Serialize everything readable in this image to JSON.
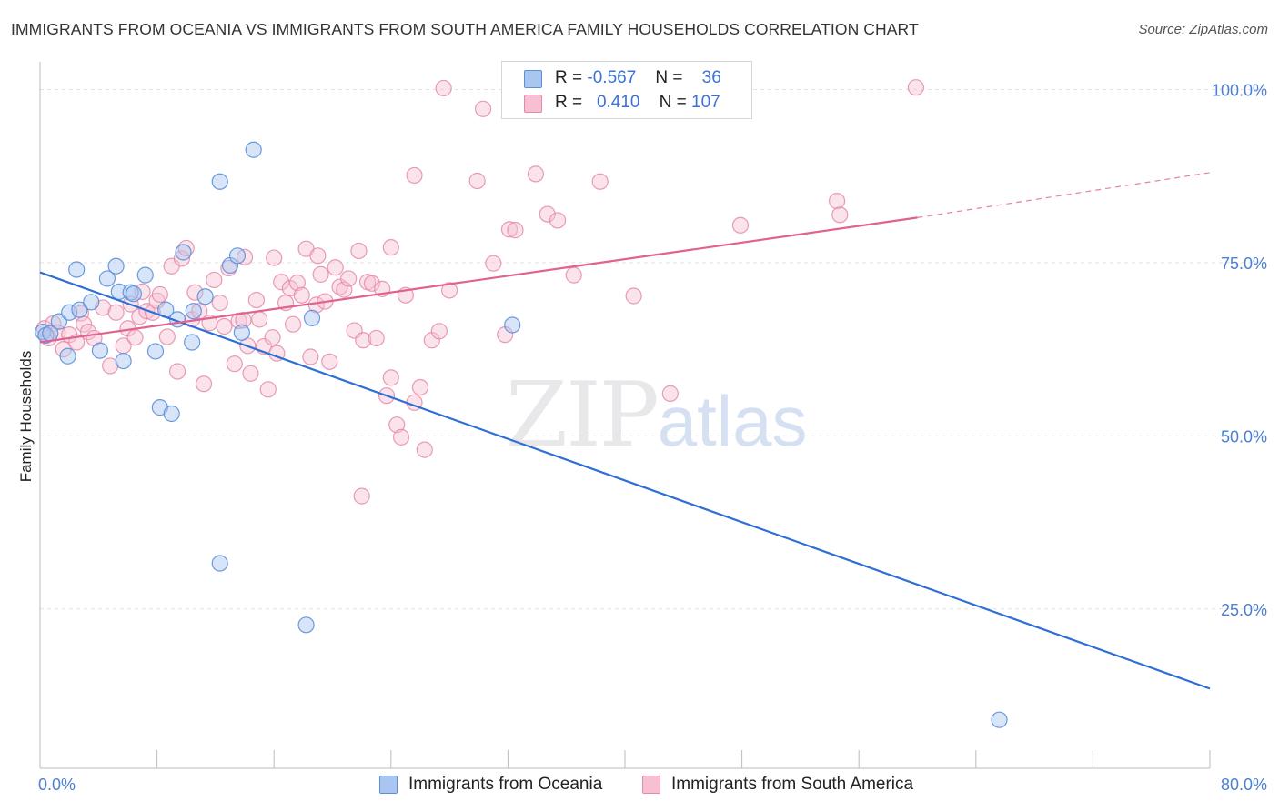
{
  "title": "IMMIGRANTS FROM OCEANIA VS IMMIGRANTS FROM SOUTH AMERICA FAMILY HOUSEHOLDS CORRELATION CHART",
  "source": "Source: ZipAtlas.com",
  "watermark": {
    "zip": "ZIP",
    "atlas": "atlas"
  },
  "colors": {
    "oceania_fill": "#a9c6f0",
    "oceania_stroke": "#5b8fdc",
    "oceania_line": "#2e6fd6",
    "sa_fill": "#f7c0d2",
    "sa_stroke": "#e589a8",
    "sa_line": "#e0628e",
    "tick_text": "#4a7fd4",
    "grid": "#e2e2e2"
  },
  "legend": {
    "rows": [
      {
        "r_label": "R =",
        "r_value": "-0.567",
        "n_label": "N =",
        "n_value": "36"
      },
      {
        "r_label": "R =",
        "r_value": "0.410",
        "n_label": "N =",
        "n_value": "107"
      }
    ]
  },
  "chart_data": {
    "type": "scatter",
    "title": "IMMIGRANTS FROM OCEANIA VS IMMIGRANTS FROM SOUTH AMERICA FAMILY HOUSEHOLDS CORRELATION CHART",
    "xlabel": "",
    "ylabel": "Family Households",
    "xlim": [
      0,
      80
    ],
    "ylim": [
      2,
      104
    ],
    "x_tick_labels": [
      "0.0%",
      "80.0%"
    ],
    "y_ticks": [
      25,
      50,
      75,
      100
    ],
    "y_tick_labels": [
      "25.0%",
      "50.0%",
      "75.0%",
      "100.0%"
    ],
    "grid": true,
    "legend_position": "top-center",
    "series": [
      {
        "name": "Immigrants from Oceania",
        "color": "#5b8fdc",
        "trend": {
          "x": [
            0,
            80
          ],
          "y": [
            73.6,
            13.5
          ]
        },
        "points": [
          [
            0.2,
            65.0
          ],
          [
            0.4,
            64.5
          ],
          [
            0.7,
            64.8
          ],
          [
            1.3,
            66.5
          ],
          [
            1.9,
            61.5
          ],
          [
            2.0,
            67.8
          ],
          [
            2.5,
            74.0
          ],
          [
            2.7,
            68.2
          ],
          [
            3.5,
            69.3
          ],
          [
            4.1,
            62.3
          ],
          [
            4.6,
            72.7
          ],
          [
            5.2,
            74.5
          ],
          [
            5.4,
            70.8
          ],
          [
            5.7,
            60.8
          ],
          [
            6.2,
            70.7
          ],
          [
            6.4,
            70.5
          ],
          [
            7.2,
            73.2
          ],
          [
            7.9,
            62.2
          ],
          [
            8.2,
            54.1
          ],
          [
            8.6,
            68.2
          ],
          [
            9.0,
            53.2
          ],
          [
            9.4,
            66.8
          ],
          [
            9.8,
            76.5
          ],
          [
            10.4,
            63.5
          ],
          [
            10.5,
            68.0
          ],
          [
            11.3,
            70.1
          ],
          [
            12.3,
            86.7
          ],
          [
            12.3,
            31.6
          ],
          [
            13.0,
            74.6
          ],
          [
            13.5,
            76.0
          ],
          [
            13.8,
            64.9
          ],
          [
            14.6,
            91.3
          ],
          [
            18.2,
            22.7
          ],
          [
            18.6,
            67.0
          ],
          [
            32.3,
            66.0
          ],
          [
            65.6,
            9.0
          ]
        ]
      },
      {
        "name": "Immigrants from South America",
        "color": "#e589a8",
        "trend": {
          "x": [
            0,
            60
          ],
          "y": [
            63.5,
            81.5
          ]
        },
        "trend_dashed": {
          "x": [
            60,
            80
          ],
          "y": [
            81.5,
            88.0
          ]
        },
        "points": [
          [
            0.3,
            65.5
          ],
          [
            0.6,
            64.1
          ],
          [
            0.9,
            66.2
          ],
          [
            1.2,
            64.9
          ],
          [
            1.6,
            62.5
          ],
          [
            2.0,
            64.6
          ],
          [
            2.5,
            63.5
          ],
          [
            2.8,
            67.7
          ],
          [
            3.0,
            66.1
          ],
          [
            3.3,
            65.0
          ],
          [
            3.7,
            64.1
          ],
          [
            4.3,
            68.5
          ],
          [
            4.8,
            60.1
          ],
          [
            5.2,
            67.8
          ],
          [
            5.7,
            63.0
          ],
          [
            6.0,
            65.5
          ],
          [
            6.2,
            69.0
          ],
          [
            6.5,
            64.2
          ],
          [
            6.8,
            67.2
          ],
          [
            7.0,
            70.8
          ],
          [
            7.3,
            68.0
          ],
          [
            7.7,
            67.8
          ],
          [
            8.0,
            69.5
          ],
          [
            8.2,
            70.4
          ],
          [
            8.7,
            64.3
          ],
          [
            9.0,
            74.5
          ],
          [
            9.4,
            59.3
          ],
          [
            9.7,
            75.6
          ],
          [
            10.0,
            77.1
          ],
          [
            10.4,
            66.8
          ],
          [
            10.6,
            70.7
          ],
          [
            10.9,
            68.0
          ],
          [
            11.2,
            57.5
          ],
          [
            11.6,
            66.3
          ],
          [
            11.9,
            72.5
          ],
          [
            12.3,
            69.2
          ],
          [
            12.6,
            65.8
          ],
          [
            12.9,
            74.2
          ],
          [
            13.3,
            60.4
          ],
          [
            13.6,
            66.6
          ],
          [
            13.9,
            66.7
          ],
          [
            14.2,
            63.0
          ],
          [
            14.4,
            59.0
          ],
          [
            14.8,
            69.6
          ],
          [
            15.0,
            66.8
          ],
          [
            15.3,
            62.9
          ],
          [
            15.6,
            56.7
          ],
          [
            15.9,
            64.2
          ],
          [
            16.2,
            61.9
          ],
          [
            16.5,
            72.2
          ],
          [
            16.8,
            69.2
          ],
          [
            17.1,
            71.3
          ],
          [
            17.3,
            66.1
          ],
          [
            17.6,
            72.1
          ],
          [
            17.9,
            70.3
          ],
          [
            18.2,
            77.0
          ],
          [
            18.5,
            61.4
          ],
          [
            18.9,
            68.9
          ],
          [
            19.2,
            73.3
          ],
          [
            19.5,
            69.4
          ],
          [
            19.8,
            60.7
          ],
          [
            20.2,
            74.3
          ],
          [
            20.5,
            71.5
          ],
          [
            20.8,
            71.1
          ],
          [
            21.1,
            72.7
          ],
          [
            21.5,
            65.2
          ],
          [
            21.8,
            76.7
          ],
          [
            22.1,
            63.8
          ],
          [
            22.4,
            72.2
          ],
          [
            22.7,
            72.0
          ],
          [
            23.0,
            64.1
          ],
          [
            23.4,
            71.2
          ],
          [
            23.7,
            55.8
          ],
          [
            24.0,
            58.4
          ],
          [
            24.4,
            51.6
          ],
          [
            24.7,
            49.8
          ],
          [
            25.0,
            70.3
          ],
          [
            25.6,
            54.8
          ],
          [
            26.0,
            57.0
          ],
          [
            26.3,
            48.0
          ],
          [
            26.8,
            63.8
          ],
          [
            27.3,
            65.1
          ],
          [
            28.0,
            71.0
          ],
          [
            22.0,
            41.3
          ],
          [
            25.6,
            87.6
          ],
          [
            27.6,
            100.2
          ],
          [
            29.9,
            86.8
          ],
          [
            30.3,
            97.2
          ],
          [
            31.8,
            64.6
          ],
          [
            32.1,
            79.8
          ],
          [
            32.5,
            79.7
          ],
          [
            33.9,
            87.8
          ],
          [
            34.7,
            82.0
          ],
          [
            35.4,
            81.1
          ],
          [
            36.5,
            73.2
          ],
          [
            38.3,
            86.7
          ],
          [
            40.6,
            70.2
          ],
          [
            43.1,
            56.1
          ],
          [
            47.9,
            80.4
          ],
          [
            54.5,
            83.9
          ],
          [
            54.7,
            81.9
          ],
          [
            59.9,
            100.3
          ],
          [
            16.0,
            75.7
          ],
          [
            19.0,
            76.0
          ],
          [
            24.0,
            77.2
          ],
          [
            14.0,
            75.8
          ],
          [
            31.0,
            74.9
          ]
        ]
      }
    ]
  },
  "bottom_legend": [
    {
      "label": "Immigrants from Oceania"
    },
    {
      "label": "Immigrants from South America"
    }
  ]
}
